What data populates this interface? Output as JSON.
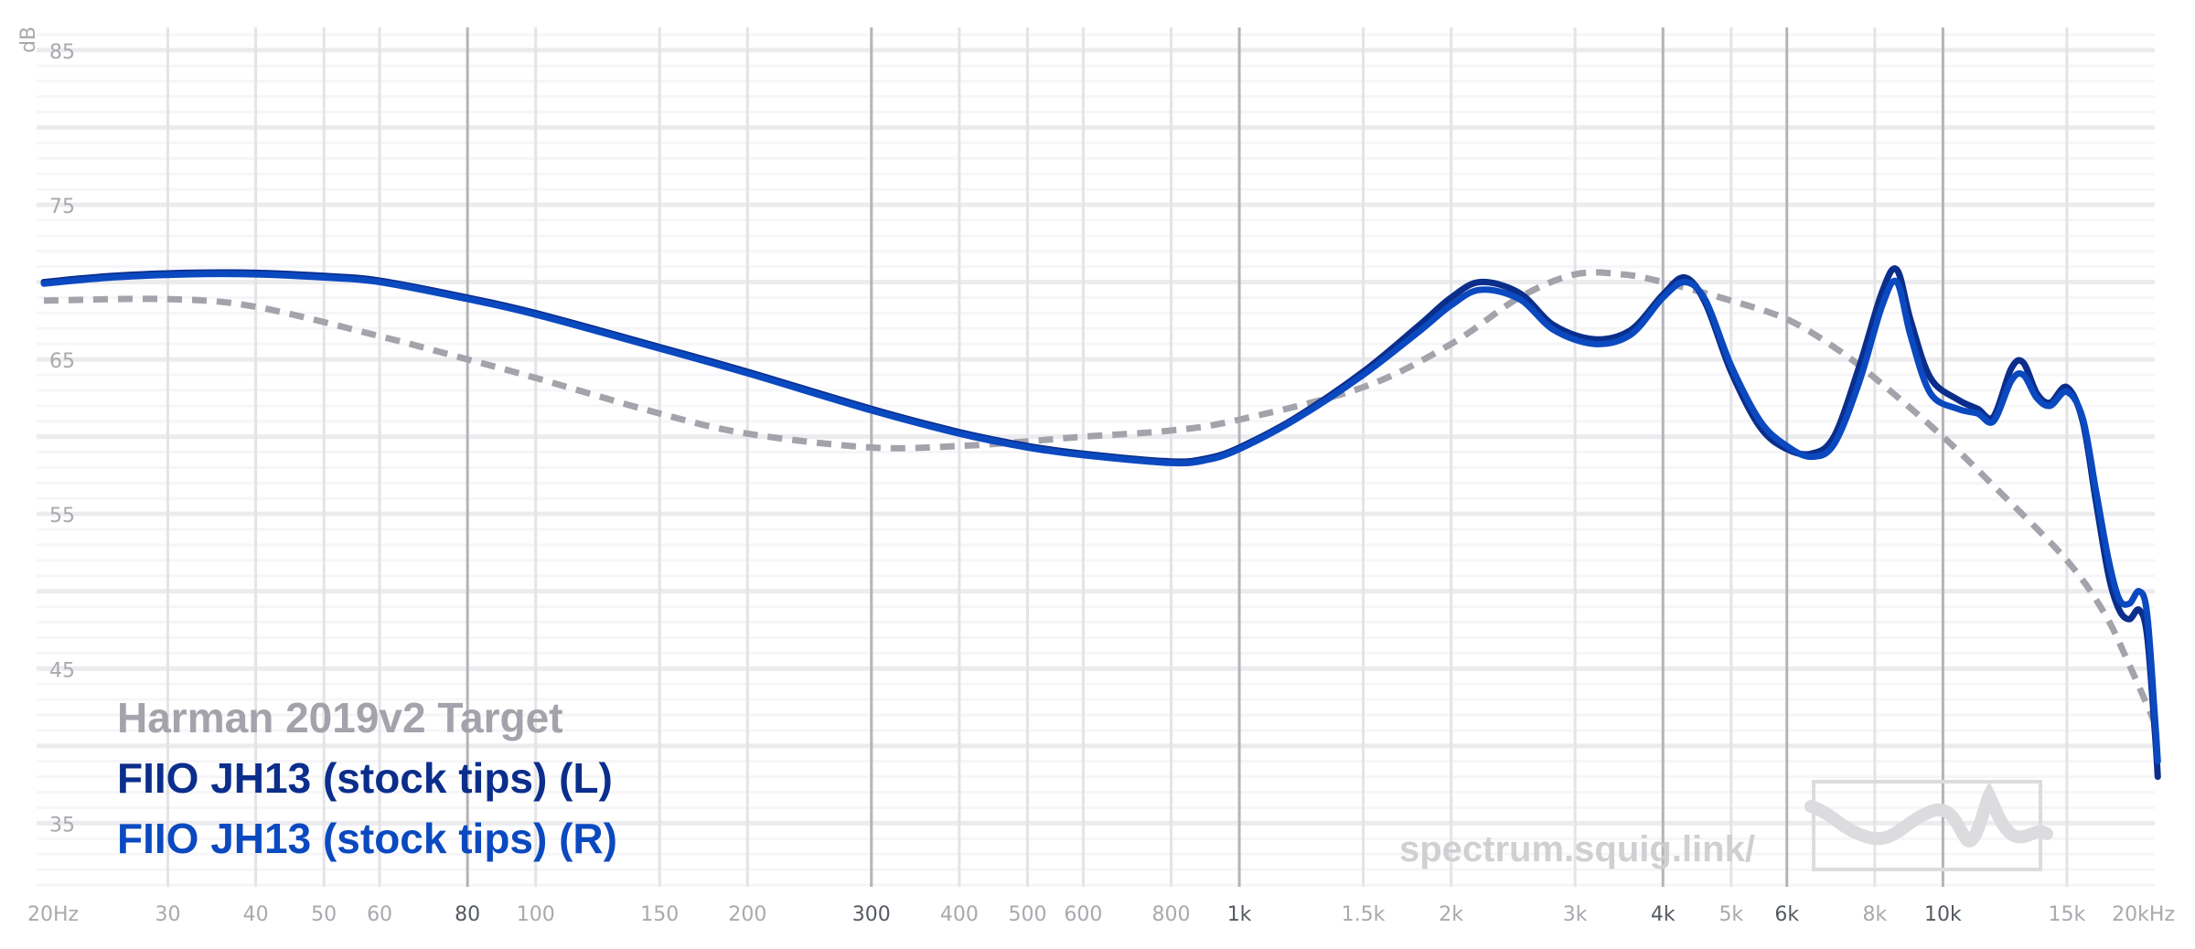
{
  "chart_data": {
    "type": "line",
    "ylabel": "dB",
    "xscale": "log",
    "xlim": [
      20,
      20000
    ],
    "ylim": [
      31,
      86
    ],
    "y_ticks": [
      "85",
      "75",
      "65",
      "55",
      "45",
      "35"
    ],
    "y_tick_values": [
      85,
      75,
      65,
      55,
      45,
      35
    ],
    "x_ticks": [
      {
        "f": 20,
        "label": "20Hz",
        "major": false
      },
      {
        "f": 30,
        "label": "30",
        "major": false
      },
      {
        "f": 40,
        "label": "40",
        "major": false
      },
      {
        "f": 50,
        "label": "50",
        "major": false
      },
      {
        "f": 60,
        "label": "60",
        "major": false
      },
      {
        "f": 80,
        "label": "80",
        "major": true
      },
      {
        "f": 100,
        "label": "100",
        "major": false
      },
      {
        "f": 150,
        "label": "150",
        "major": false
      },
      {
        "f": 200,
        "label": "200",
        "major": false
      },
      {
        "f": 300,
        "label": "300",
        "major": true
      },
      {
        "f": 400,
        "label": "400",
        "major": false
      },
      {
        "f": 500,
        "label": "500",
        "major": false
      },
      {
        "f": 600,
        "label": "600",
        "major": false
      },
      {
        "f": 800,
        "label": "800",
        "major": false
      },
      {
        "f": 1000,
        "label": "1k",
        "major": true
      },
      {
        "f": 1500,
        "label": "1.5k",
        "major": false
      },
      {
        "f": 2000,
        "label": "2k",
        "major": false
      },
      {
        "f": 3000,
        "label": "3k",
        "major": false
      },
      {
        "f": 4000,
        "label": "4k",
        "major": true
      },
      {
        "f": 5000,
        "label": "5k",
        "major": false
      },
      {
        "f": 6000,
        "label": "6k",
        "major": true
      },
      {
        "f": 8000,
        "label": "8k",
        "major": false
      },
      {
        "f": 10000,
        "label": "10k",
        "major": true
      },
      {
        "f": 15000,
        "label": "15k",
        "major": false
      },
      {
        "f": 20000,
        "label": "20kHz",
        "major": false
      }
    ],
    "series": [
      {
        "name": "Harman 2019v2 Target",
        "color": "#a3a3ab",
        "dashed": true,
        "points": [
          [
            20,
            68.8
          ],
          [
            30,
            68.9
          ],
          [
            40,
            68.4
          ],
          [
            60,
            66.5
          ],
          [
            80,
            65.0
          ],
          [
            100,
            63.8
          ],
          [
            150,
            61.5
          ],
          [
            200,
            60.2
          ],
          [
            300,
            59.3
          ],
          [
            400,
            59.4
          ],
          [
            500,
            59.7
          ],
          [
            600,
            60.0
          ],
          [
            800,
            60.4
          ],
          [
            1000,
            61.1
          ],
          [
            1500,
            63.2
          ],
          [
            2000,
            66.0
          ],
          [
            2500,
            69.0
          ],
          [
            3000,
            70.5
          ],
          [
            3500,
            70.5
          ],
          [
            4000,
            70.0
          ],
          [
            5000,
            68.8
          ],
          [
            6000,
            67.6
          ],
          [
            7000,
            65.8
          ],
          [
            8000,
            63.8
          ],
          [
            10000,
            60.0
          ],
          [
            12000,
            56.5
          ],
          [
            15000,
            52.0
          ],
          [
            17000,
            48.5
          ],
          [
            18500,
            45.0
          ],
          [
            20000,
            41.5
          ]
        ]
      },
      {
        "name": "FIIO JH13 (stock tips) (L)",
        "color": "#0b2e8c",
        "dashed": false,
        "points": [
          [
            20,
            70.0
          ],
          [
            25,
            70.4
          ],
          [
            32,
            70.6
          ],
          [
            40,
            70.6
          ],
          [
            50,
            70.4
          ],
          [
            60,
            70.1
          ],
          [
            80,
            69.0
          ],
          [
            100,
            68.0
          ],
          [
            150,
            65.8
          ],
          [
            200,
            64.2
          ],
          [
            300,
            61.8
          ],
          [
            400,
            60.3
          ],
          [
            500,
            59.4
          ],
          [
            600,
            58.9
          ],
          [
            800,
            58.4
          ],
          [
            900,
            58.6
          ],
          [
            1000,
            59.3
          ],
          [
            1200,
            61.2
          ],
          [
            1500,
            64.2
          ],
          [
            1800,
            67.2
          ],
          [
            2000,
            69.0
          ],
          [
            2200,
            70.0
          ],
          [
            2500,
            69.3
          ],
          [
            2800,
            67.2
          ],
          [
            3200,
            66.3
          ],
          [
            3600,
            66.9
          ],
          [
            4000,
            69.2
          ],
          [
            4300,
            70.3
          ],
          [
            4600,
            68.6
          ],
          [
            5000,
            64.2
          ],
          [
            5500,
            60.6
          ],
          [
            6000,
            59.2
          ],
          [
            6500,
            58.9
          ],
          [
            7000,
            60.0
          ],
          [
            7600,
            64.5
          ],
          [
            8200,
            69.4
          ],
          [
            8600,
            70.8
          ],
          [
            9000,
            67.5
          ],
          [
            9600,
            63.8
          ],
          [
            10500,
            62.4
          ],
          [
            11200,
            61.8
          ],
          [
            11800,
            61.3
          ],
          [
            12500,
            64.4
          ],
          [
            13000,
            64.8
          ],
          [
            13600,
            62.8
          ],
          [
            14200,
            62.2
          ],
          [
            15000,
            63.2
          ],
          [
            15800,
            61.0
          ],
          [
            16500,
            55.8
          ],
          [
            17200,
            51.0
          ],
          [
            17800,
            48.8
          ],
          [
            18400,
            48.2
          ],
          [
            19000,
            48.8
          ],
          [
            19500,
            47.2
          ],
          [
            20000,
            41.0
          ],
          [
            20200,
            38.0
          ]
        ]
      },
      {
        "name": "FIIO JH13 (stock tips) (R)",
        "color": "#0b49c0",
        "dashed": false,
        "points": [
          [
            20,
            69.9
          ],
          [
            25,
            70.3
          ],
          [
            32,
            70.5
          ],
          [
            40,
            70.5
          ],
          [
            50,
            70.3
          ],
          [
            60,
            70.0
          ],
          [
            80,
            68.9
          ],
          [
            100,
            67.9
          ],
          [
            150,
            65.7
          ],
          [
            200,
            64.1
          ],
          [
            300,
            61.7
          ],
          [
            400,
            60.2
          ],
          [
            500,
            59.3
          ],
          [
            600,
            58.8
          ],
          [
            800,
            58.3
          ],
          [
            900,
            58.5
          ],
          [
            1000,
            59.2
          ],
          [
            1200,
            61.1
          ],
          [
            1500,
            64.0
          ],
          [
            1800,
            66.8
          ],
          [
            2000,
            68.5
          ],
          [
            2200,
            69.5
          ],
          [
            2500,
            68.9
          ],
          [
            2800,
            66.9
          ],
          [
            3200,
            66.0
          ],
          [
            3600,
            66.6
          ],
          [
            4000,
            69.0
          ],
          [
            4300,
            70.0
          ],
          [
            4600,
            68.8
          ],
          [
            5000,
            64.6
          ],
          [
            5500,
            61.0
          ],
          [
            6000,
            59.4
          ],
          [
            6500,
            58.7
          ],
          [
            7000,
            59.5
          ],
          [
            7600,
            63.5
          ],
          [
            8200,
            68.5
          ],
          [
            8600,
            70.0
          ],
          [
            9000,
            66.5
          ],
          [
            9600,
            62.8
          ],
          [
            10500,
            61.8
          ],
          [
            11200,
            61.5
          ],
          [
            11800,
            61.0
          ],
          [
            12500,
            63.6
          ],
          [
            13000,
            64.0
          ],
          [
            13600,
            62.5
          ],
          [
            14200,
            62.0
          ],
          [
            15000,
            62.9
          ],
          [
            15800,
            61.2
          ],
          [
            16500,
            56.5
          ],
          [
            17200,
            52.0
          ],
          [
            17800,
            49.5
          ],
          [
            18400,
            49.2
          ],
          [
            19000,
            50.0
          ],
          [
            19500,
            48.6
          ],
          [
            20000,
            42.0
          ],
          [
            20200,
            39.0
          ]
        ]
      }
    ]
  },
  "watermark": {
    "text": "spectrum.squig.link/"
  }
}
